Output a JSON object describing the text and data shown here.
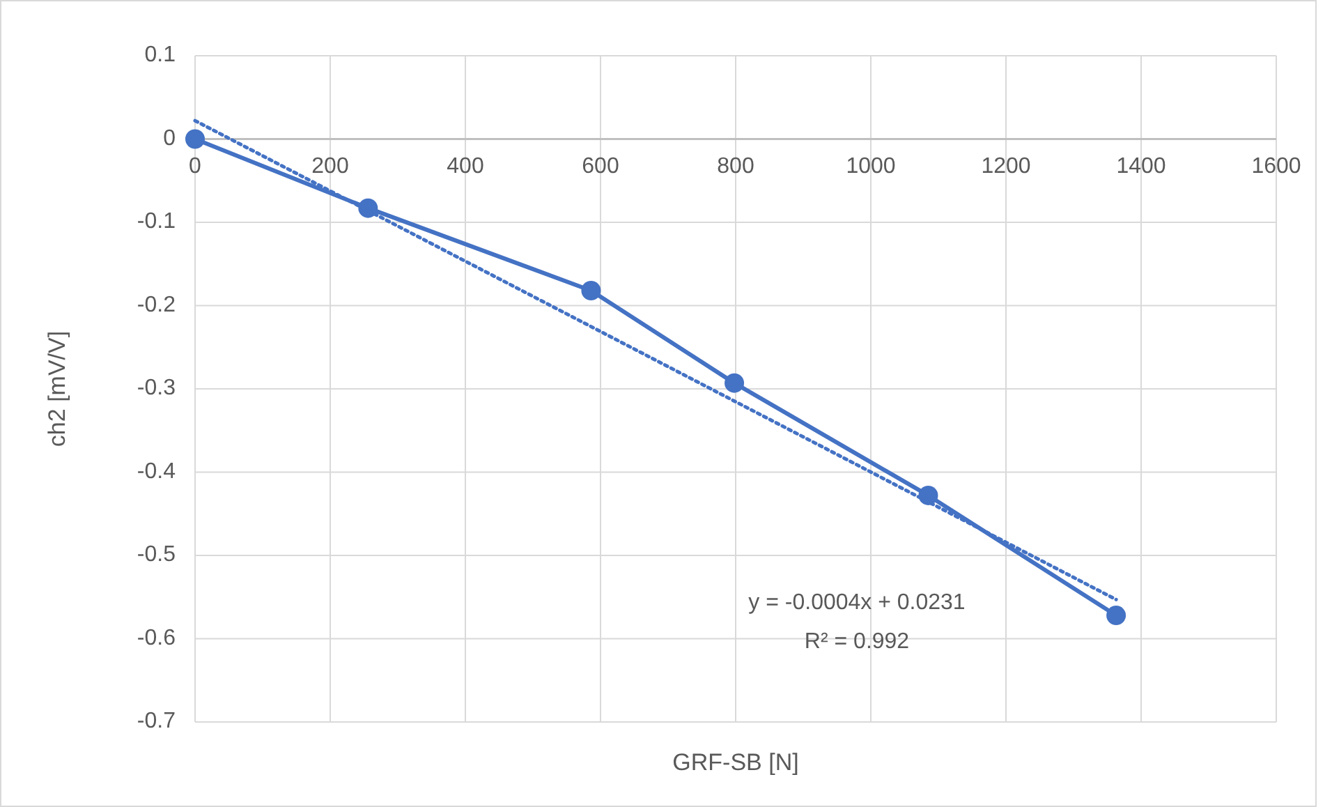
{
  "chart_data": {
    "type": "line",
    "xlabel": "GRF-SB [N]",
    "ylabel": "ch2 [mV/V]",
    "xlim": [
      0,
      1600
    ],
    "xticks": [
      0,
      200,
      400,
      600,
      800,
      1000,
      1200,
      1400,
      1600
    ],
    "ylim": [
      -0.7,
      0.1
    ],
    "yticks": [
      0.1,
      0,
      -0.1,
      -0.2,
      -0.3,
      -0.4,
      -0.5,
      -0.6,
      -0.7
    ],
    "grid": true,
    "series": [
      {
        "color": "#4472c4",
        "marker": "circle",
        "line_style": "solid",
        "x": [
          0,
          256,
          586,
          798,
          1085,
          1363
        ],
        "values": [
          0,
          -0.083,
          -0.182,
          -0.293,
          -0.428,
          -0.572
        ]
      },
      {
        "type": "line",
        "color": "#4472c4",
        "marker": "none",
        "line_style": "dotted",
        "x": [
          0,
          1363
        ],
        "values": [
          0.022,
          -0.553
        ]
      }
    ],
    "annotations": [
      "y = -0.0004x + 0.0231",
      "R² = 0.992"
    ]
  }
}
